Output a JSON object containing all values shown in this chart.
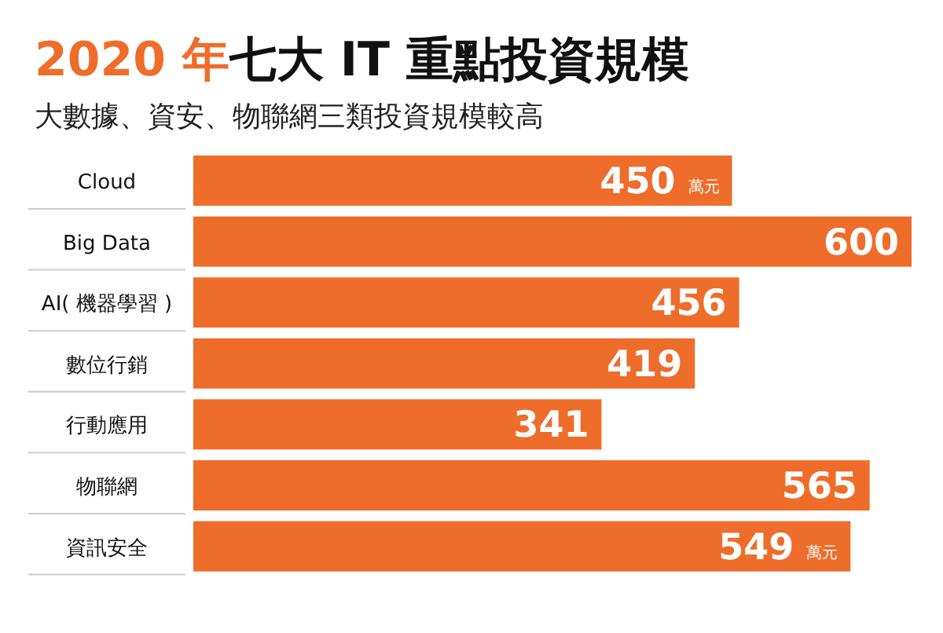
{
  "chart_data": {
    "type": "bar",
    "orientation": "horizontal",
    "title": "2020 年七大 IT 重點投資規模",
    "subtitle": "大數據、資安、物聯網三類投資規模較高",
    "categories": [
      "Cloud",
      "Big Data",
      "AI( 機器學習 )",
      "數位行銷",
      "行動應用",
      "物聯網",
      "資訊安全"
    ],
    "values": [
      450,
      600,
      456,
      419,
      341,
      565,
      549
    ],
    "value_labels": [
      "450 萬元",
      "600",
      "456",
      "419",
      "341",
      "565",
      "549 萬元"
    ],
    "color": "#ee6d2b"
  }
}
